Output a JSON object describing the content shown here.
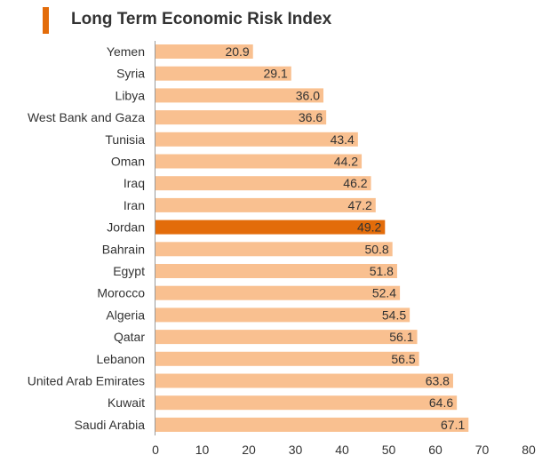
{
  "title": "Long Term Economic Risk Index",
  "colors": {
    "bar": "#f9c090",
    "highlight": "#e36c0a",
    "accent": "#e36c0a",
    "axis": "#999999",
    "text": "#333333"
  },
  "chart_data": {
    "type": "bar",
    "orientation": "horizontal",
    "title": "Long Term Economic Risk Index",
    "xlabel": "",
    "ylabel": "",
    "xlim": [
      0,
      80
    ],
    "xticks": [
      "0",
      "10",
      "20",
      "30",
      "40",
      "50",
      "60",
      "70",
      "80"
    ],
    "grid": false,
    "highlight": "Jordan",
    "categories": [
      "Yemen",
      "Syria",
      "Libya",
      "West Bank and Gaza",
      "Tunisia",
      "Oman",
      "Iraq",
      "Iran",
      "Jordan",
      "Bahrain",
      "Egypt",
      "Morocco",
      "Algeria",
      "Qatar",
      "Lebanon",
      "United Arab Emirates",
      "Kuwait",
      "Saudi Arabia"
    ],
    "values": [
      20.9,
      29.1,
      36.0,
      36.6,
      43.4,
      44.2,
      46.2,
      47.2,
      49.2,
      50.8,
      51.8,
      52.4,
      54.5,
      56.1,
      56.5,
      63.8,
      64.6,
      67.1
    ],
    "value_labels": [
      "20.9",
      "29.1",
      "36.0",
      "36.6",
      "43.4",
      "44.2",
      "46.2",
      "47.2",
      "49.2",
      "50.8",
      "51.8",
      "52.4",
      "54.5",
      "56.1",
      "56.5",
      "63.8",
      "64.6",
      "67.1"
    ]
  }
}
